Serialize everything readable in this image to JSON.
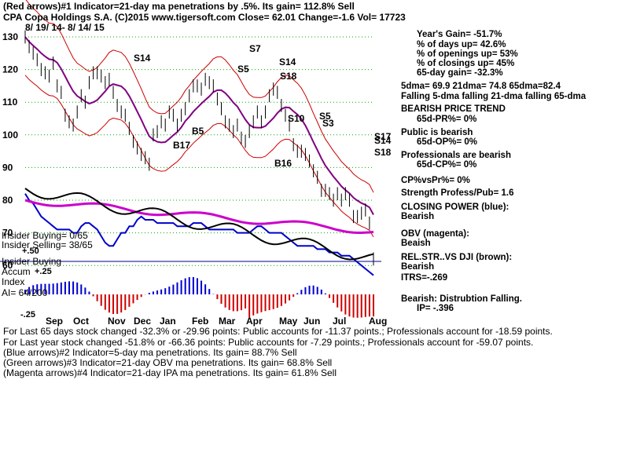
{
  "header": {
    "line1": "(Red arrows)#1 Indicator=21-day ma penetrations by .5%. Its gain= 112.8% Sell",
    "line2": "CPA   Copa Holdings S.A.  (C)2015 www.tigersoft.com    Close=  62.01  Change=-1.6 Vol= 17723",
    "line3": "8/ 19/ 14-  8/ 14/ 15"
  },
  "stats": [
    "Year's Gain= -51.7%",
    "% of days up= 42.6%",
    "% of openings up= 53%",
    "% of closings up= 45%",
    "65-day gain= -32.3%",
    "5dma= 69.9  21dma= 74.8  65dma=82.4",
    "Falling 5-dma  falling 21-dma  falling 65-dma",
    "BEARISH PRICE TREND",
    "65d-PR%= 0%",
    "Public is bearish",
    "65d-OP%= 0%",
    "Professionals are bearish",
    "65d-CP%= 0%",
    "CP%vsPr%=  0%",
    "Strength Profess/Pub= 1.6",
    "CLOSING POWER (blue):",
    "Bearish",
    "OBV (magenta):",
    "Beaish",
    "REL.STR..VS DJI (brown):",
    "Bearish",
    "ITRS=-.269",
    "Bearish: Distrubtion Falling.",
    "IP= -.396"
  ],
  "left_labels": {
    "insider_buying": "Insider Buying= 0/65",
    "insider_selling": "Insider Selling= 38/65",
    "plus50": "+.50",
    "insider_buying2": "Insider Buying",
    "accum": "Accum",
    "plus25": "+.25",
    "index": "Index",
    "ai": "AI= 64/200",
    "minus25": "-.25"
  },
  "footer": [
    "For Last 65 days stock changed -32.3% or -29.96 points:  Public accounts for -11.37 points.;  Professionals account for -18.59 points.",
    "For Last year stock changed -51.8% or -66.36 points:  Public accounts for -7.29 points.;  Professionals account for -59.07 points.",
    "(Blue arrows)#2 Indicator=5-day ma penetrations. Its gain= 88.7% Sell",
    "(Green arrows)#3 Indicator=21-day OBV ma penetrations. Its gain= 68.8% Sell",
    "(Magenta arrows)#4 Indicator=21-day IPA ma penetrations. Its gain= 61.8% Sell"
  ],
  "annotations": [
    "S14",
    "S7",
    "S5",
    "S14",
    "S18",
    "B5",
    "B17",
    "S10",
    "S5",
    "S3",
    "B16",
    "S17",
    "S14",
    "S18"
  ],
  "colors": {
    "price": "#000000",
    "ma_band": "#cc0000",
    "ma": "#800080",
    "closing_power": "#0000cc",
    "obv": "#cc00cc",
    "grid": "#00aa00",
    "accum_up": "#0000cc",
    "accum_down": "#cc0000",
    "up_arrow_blue": "#0000ff",
    "down_arrow_red": "#ff0000"
  },
  "chart_data": {
    "type": "line",
    "title": "CPA   Copa Holdings S.A.",
    "x_tick_labels": [
      "Sep",
      "Oct",
      "Nov",
      "Dec",
      "Jan",
      "Feb",
      "Mar",
      "Apr",
      "May",
      "Jun",
      "Jul",
      "Aug"
    ],
    "y_tick_labels": [
      "130",
      "120",
      "110",
      "100",
      "90",
      "80",
      "70",
      "60"
    ],
    "ylim": [
      55,
      133
    ],
    "grid": true,
    "series": [
      {
        "values": [
          130,
          127,
          125,
          123,
          120,
          119,
          118,
          122,
          115,
          113,
          106,
          104,
          103,
          107,
          112,
          110,
          116,
          119,
          119,
          118,
          116,
          117,
          113,
          109,
          107,
          106,
          102,
          98,
          96,
          94,
          93,
          91,
          100,
          101,
          104,
          103,
          107,
          106,
          103,
          106,
          108,
          112,
          115,
          115,
          114,
          117,
          116,
          115,
          111,
          108,
          104,
          103,
          101,
          103,
          99,
          98,
          101,
          104,
          107,
          104,
          107,
          112,
          114,
          113,
          109,
          106,
          103,
          97,
          95,
          95,
          94,
          92,
          89,
          87,
          83,
          83,
          82,
          80,
          82,
          80,
          82,
          80,
          75,
          75,
          76,
          77,
          73,
          62
        ]
      },
      {
        "values": [
          82,
          80,
          79,
          77,
          75,
          74,
          73,
          72,
          71,
          71,
          71,
          71,
          70,
          70,
          72,
          73,
          73,
          72,
          71,
          69,
          67,
          66,
          66,
          68,
          70,
          70,
          72,
          72,
          74,
          75,
          74,
          74,
          74,
          73,
          73,
          73,
          73,
          73,
          72,
          72,
          72,
          72,
          73,
          73,
          73,
          72,
          71,
          71,
          71,
          71,
          71,
          71,
          71,
          70,
          70,
          70,
          70,
          71,
          72,
          72,
          71,
          70,
          70,
          70,
          70,
          69,
          68,
          67,
          66,
          66,
          66,
          66,
          66,
          65,
          65,
          65,
          64,
          64,
          64,
          63,
          63,
          63,
          62,
          61,
          60,
          59,
          58,
          57
        ]
      }
    ]
  }
}
